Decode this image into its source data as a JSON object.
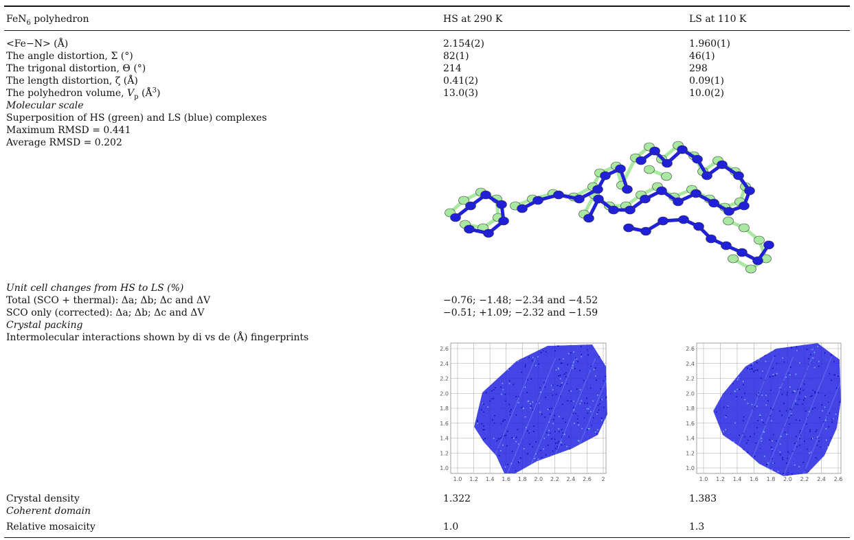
{
  "header": {
    "col1_prefix": "FeN",
    "col1_sub": "6",
    "col1_suffix": " polyhedron",
    "col2": "HS at 290 K",
    "col3": "LS at 110 K"
  },
  "rows": {
    "fe_n": {
      "label": "<Fe−N> (Å)",
      "hs": "2.154(2)",
      "ls": "1.960(1)"
    },
    "angle": {
      "label": "The angle distortion, Σ (°)",
      "hs": "82(1)",
      "ls": "46(1)"
    },
    "trigonal": {
      "label": "The trigonal distortion, Θ (°)",
      "hs": "214",
      "ls": "298"
    },
    "length": {
      "label": "The length distortion, ζ (Å)",
      "hs": "0.41(2)",
      "ls": "0.09(1)"
    },
    "volume": {
      "label_prefix": "The polyhedron volume, ",
      "label_v": "V",
      "label_sub": "p",
      "label_mid": " (Å",
      "label_sup": "3",
      "label_end": ")",
      "hs": "13.0(3)",
      "ls": "10.0(2)"
    }
  },
  "molecular": {
    "heading": "Molecular scale",
    "line1": "Superposition of HS (green) and LS (blue) complexes",
    "line2": "Maximum RMSD = 0.441",
    "line3": "Average RMSD = 0.202",
    "hs_color": "#a8e8a0",
    "ls_color": "#2020d8"
  },
  "unitcell": {
    "heading": "Unit cell changes from HS to LS (%)",
    "total_label": "Total (SCO + thermal): Δa; Δb; Δc and ΔV",
    "total_value": "−0.76; −1.48; −2.34 and −4.52",
    "sco_label": "SCO only (corrected): Δa; Δb; Δc and ΔV",
    "sco_value": "−0.51; +1.09; −2.32 and −1.59"
  },
  "packing": {
    "heading": "Crystal packing",
    "fingerprint_label": "Intermolecular interactions shown by di vs de (Å) fingerprints",
    "y_ticks": [
      "2.6",
      "2.4",
      "2.2",
      "2.0",
      "1.8",
      "1.6",
      "1.4",
      "1.2",
      "1.0"
    ],
    "x_ticks_hs": [
      "1.0",
      "1.2",
      "1.4",
      "1.6",
      "1.8",
      "2.0",
      "2.2",
      "2.4",
      "2.6",
      "2"
    ],
    "x_ticks_ls": [
      "1.0",
      "1.2",
      "1.4",
      "1.6",
      "1.8",
      "2.0",
      "2.2",
      "2.4",
      "2.6"
    ],
    "point_color": "#2424e0"
  },
  "density": {
    "label": "Crystal density",
    "hs": "1.322",
    "ls": "1.383"
  },
  "coherent": {
    "heading": "Coherent domain"
  },
  "mosaicity": {
    "label": "Relative mosaicity",
    "hs": "1.0",
    "ls": "1.3"
  }
}
